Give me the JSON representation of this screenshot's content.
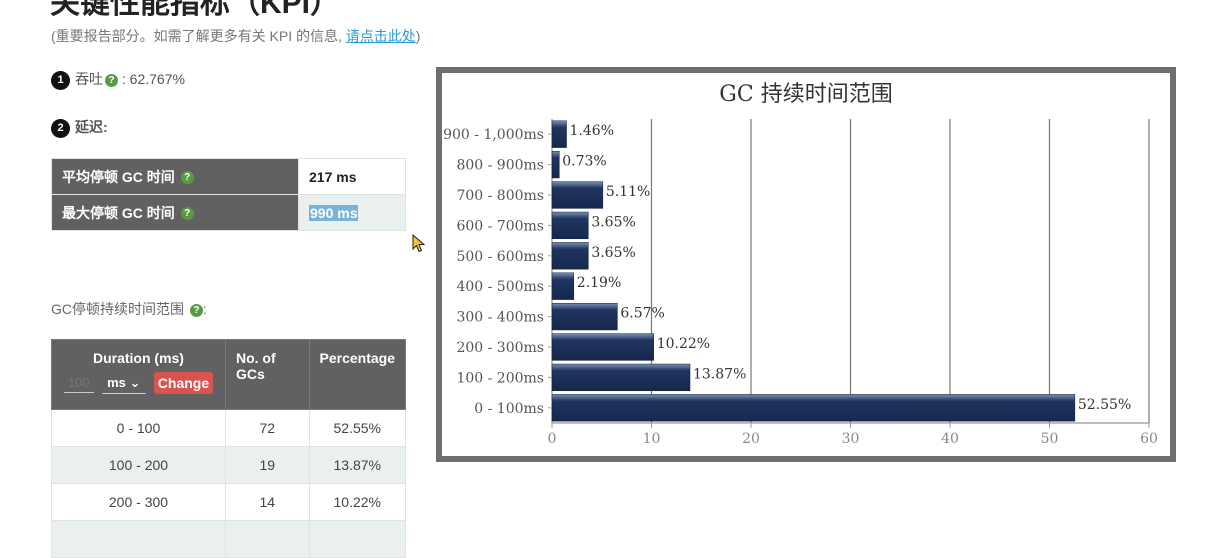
{
  "header": {
    "title": "关键性能指标（KPI）",
    "note_prefix": "(重要报告部分。如需了解更多有关 KPI 的信息, ",
    "note_link": "请点击此处",
    "note_suffix": ")"
  },
  "throughput": {
    "number": "1",
    "label": "吞吐",
    "value": ": 62.767%"
  },
  "latency": {
    "number": "2",
    "label": "延迟:",
    "rows": [
      {
        "label": "平均停顿 GC 时间",
        "value": "217 ms"
      },
      {
        "label": "最大停顿 GC 时间",
        "value": "990 ms"
      }
    ]
  },
  "pause_section": {
    "label": "GC停顿持续时间范围",
    "suffix": ":"
  },
  "pause_table": {
    "headers": {
      "duration": "Duration (ms)",
      "count": "No. of GCs",
      "percentage": "Percentage"
    },
    "controls": {
      "interval_placeholder": "100",
      "unit": "ms",
      "change_label": "Change"
    },
    "rows": [
      {
        "range": "0 - 100",
        "count": "72",
        "percent": "52.55%"
      },
      {
        "range": "100 - 200",
        "count": "19",
        "percent": "13.87%"
      },
      {
        "range": "200 - 300",
        "count": "14",
        "percent": "10.22%"
      },
      {
        "range": "",
        "count": "",
        "percent": ""
      }
    ]
  },
  "icons": {
    "help": "help-circle-icon",
    "cursor": "mouse-pointer-icon",
    "chevron": "chevron-down-icon"
  },
  "colors": {
    "bar": "#1f3560",
    "header_bg": "#616161",
    "accent_red": "#d9534f",
    "link": "#2a9bd8",
    "help_green": "#5b9a44"
  },
  "chart_data": {
    "type": "bar",
    "orientation": "horizontal",
    "title": "GC 持续时间范围",
    "categories": [
      "0 - 100ms",
      "100 - 200ms",
      "200 - 300ms",
      "300 - 400ms",
      "400 - 500ms",
      "500 - 600ms",
      "600 - 700ms",
      "700 - 800ms",
      "800 - 900ms",
      "900 - 1,000ms"
    ],
    "values": [
      52.55,
      13.87,
      10.22,
      6.57,
      2.19,
      3.65,
      3.65,
      5.11,
      0.73,
      1.46
    ],
    "data_labels": [
      "52.55%",
      "13.87%",
      "10.22%",
      "6.57%",
      "2.19%",
      "3.65%",
      "3.65%",
      "5.11%",
      "0.73%",
      "1.46%"
    ],
    "xlim": [
      0,
      60
    ],
    "xticks": [
      0,
      10,
      20,
      30,
      40,
      50,
      60
    ],
    "xlabel": "",
    "ylabel": "",
    "grid": true
  }
}
